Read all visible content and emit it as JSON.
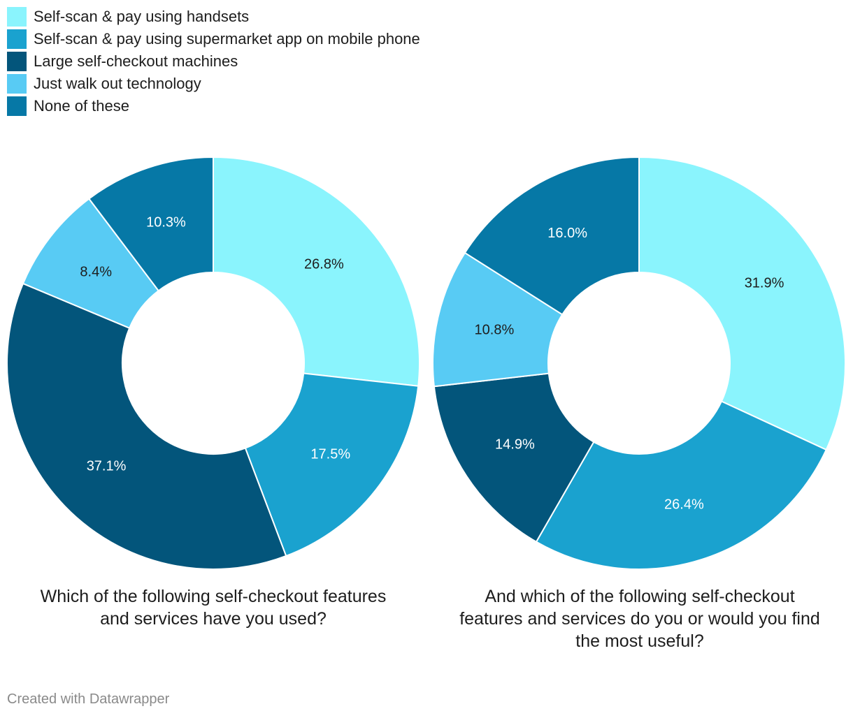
{
  "legend": [
    {
      "label": "Self-scan & pay using handsets",
      "color": "#8af4fd"
    },
    {
      "label": "Self-scan & pay using supermarket app on mobile phone",
      "color": "#1aa2cf"
    },
    {
      "label": "Large self-checkout machines",
      "color": "#03557b"
    },
    {
      "label": "Just walk out technology",
      "color": "#58cbf4"
    },
    {
      "label": "None of these",
      "color": "#0678a6"
    }
  ],
  "chart_data": [
    {
      "type": "pie",
      "title": "Which of the following self-checkout features and services have you used?",
      "categories": [
        "Self-scan & pay using handsets",
        "Self-scan & pay using supermarket app on mobile phone",
        "Large self-checkout machines",
        "Just walk out technology",
        "None of these"
      ],
      "values": [
        26.8,
        17.5,
        37.1,
        8.4,
        10.3
      ],
      "labels": [
        "26.8%",
        "17.5%",
        "37.1%",
        "8.4%",
        "10.3%"
      ],
      "label_colors": [
        "#1d1d1d",
        "#ffffff",
        "#ffffff",
        "#1d1d1d",
        "#ffffff"
      ]
    },
    {
      "type": "pie",
      "title": "And which of the following self-checkout features and services do you or would you find the most useful?",
      "categories": [
        "Self-scan & pay using handsets",
        "Self-scan & pay using supermarket app on mobile phone",
        "Large self-checkout machines",
        "Just walk out technology",
        "None of these"
      ],
      "values": [
        31.9,
        26.4,
        14.9,
        10.8,
        16.0
      ],
      "labels": [
        "31.9%",
        "26.4%",
        "14.9%",
        "10.8%",
        "16.0%"
      ],
      "label_colors": [
        "#1d1d1d",
        "#ffffff",
        "#ffffff",
        "#1d1d1d",
        "#ffffff"
      ]
    }
  ],
  "footer": {
    "credit": "Created with Datawrapper"
  }
}
